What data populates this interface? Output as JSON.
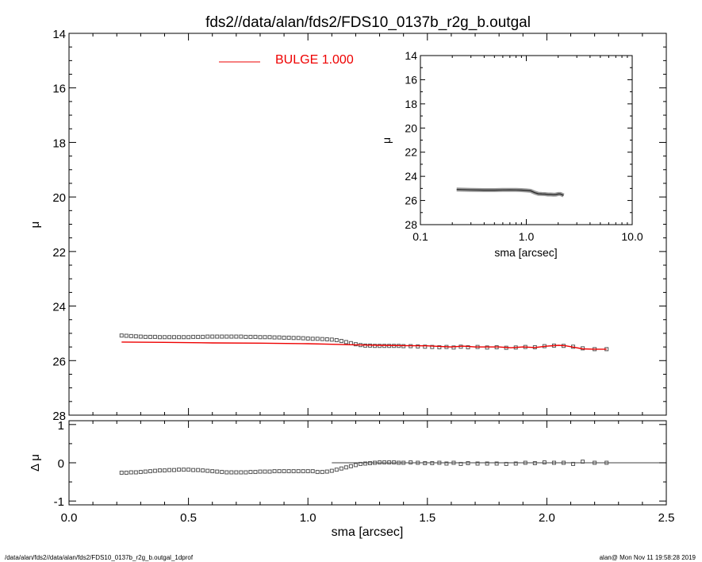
{
  "chart_data": [
    {
      "type": "scatter",
      "panel": "main",
      "title": "fds2//data/alan/fds2/FDS10_0137b_r2g_b.outgal",
      "ylabel": "μ",
      "xlim": [
        0.0,
        2.5
      ],
      "ylim": [
        28,
        14
      ],
      "y_inverted": true,
      "yticks": [
        "14",
        "16",
        "18",
        "20",
        "22",
        "24",
        "26",
        "28"
      ],
      "legend": {
        "label": "BULGE  1.000",
        "color": "#ee0000",
        "position": "top-center"
      },
      "series": [
        {
          "kind": "points",
          "marker": "open-square",
          "color": "#555555",
          "x": [
            0.22,
            0.24,
            0.26,
            0.28,
            0.3,
            0.32,
            0.34,
            0.36,
            0.38,
            0.4,
            0.42,
            0.44,
            0.46,
            0.48,
            0.5,
            0.52,
            0.54,
            0.56,
            0.58,
            0.6,
            0.62,
            0.64,
            0.66,
            0.68,
            0.7,
            0.72,
            0.74,
            0.76,
            0.78,
            0.8,
            0.82,
            0.84,
            0.86,
            0.88,
            0.9,
            0.92,
            0.94,
            0.96,
            0.98,
            1.0,
            1.02,
            1.04,
            1.06,
            1.08,
            1.1,
            1.12,
            1.14,
            1.16,
            1.18,
            1.2,
            1.22,
            1.24,
            1.26,
            1.28,
            1.3,
            1.32,
            1.34,
            1.36,
            1.38,
            1.4,
            1.43,
            1.46,
            1.49,
            1.52,
            1.55,
            1.58,
            1.61,
            1.64,
            1.67,
            1.71,
            1.75,
            1.79,
            1.83,
            1.87,
            1.91,
            1.95,
            1.99,
            2.03,
            2.07,
            2.11,
            2.15,
            2.2,
            2.25
          ],
          "y": [
            25.08,
            25.09,
            25.1,
            25.11,
            25.12,
            25.13,
            25.13,
            25.13,
            25.14,
            25.14,
            25.14,
            25.14,
            25.14,
            25.14,
            25.14,
            25.13,
            25.13,
            25.13,
            25.12,
            25.12,
            25.12,
            25.12,
            25.12,
            25.12,
            25.12,
            25.12,
            25.13,
            25.13,
            25.13,
            25.14,
            25.14,
            25.14,
            25.15,
            25.15,
            25.16,
            25.16,
            25.17,
            25.17,
            25.18,
            25.19,
            25.2,
            25.2,
            25.21,
            25.22,
            25.23,
            25.25,
            25.28,
            25.32,
            25.36,
            25.4,
            25.43,
            25.45,
            25.45,
            25.46,
            25.46,
            25.46,
            25.46,
            25.46,
            25.46,
            25.47,
            25.47,
            25.48,
            25.49,
            25.5,
            25.51,
            25.5,
            25.52,
            25.49,
            25.51,
            25.5,
            25.52,
            25.51,
            25.53,
            25.52,
            25.5,
            25.51,
            25.47,
            25.45,
            25.46,
            25.49,
            25.55,
            25.58,
            25.58
          ]
        },
        {
          "kind": "line",
          "name": "BULGE",
          "color": "#ee0000",
          "x": [
            0.22,
            0.4,
            0.6,
            0.8,
            1.0,
            1.1,
            1.2,
            1.25,
            1.3,
            1.4,
            1.5,
            1.55,
            1.6,
            1.65,
            1.7,
            1.8,
            1.85,
            1.9,
            1.95,
            2.0,
            2.05,
            2.08,
            2.12,
            2.15,
            2.2,
            2.25
          ],
          "y": [
            25.32,
            25.33,
            25.35,
            25.36,
            25.38,
            25.4,
            25.42,
            25.43,
            25.44,
            25.45,
            25.46,
            25.48,
            25.5,
            25.47,
            25.5,
            25.5,
            25.53,
            25.5,
            25.52,
            25.47,
            25.44,
            25.46,
            25.52,
            25.57,
            25.58,
            25.58
          ]
        }
      ]
    },
    {
      "type": "scatter",
      "panel": "inset",
      "xlabel": "sma [arcsec]",
      "ylabel": "μ",
      "xscale": "log",
      "xlim": [
        0.1,
        10.0
      ],
      "ylim": [
        28,
        14
      ],
      "y_inverted": true,
      "xticks": [
        "0.1",
        "1.0",
        "10.0"
      ],
      "yticks": [
        "14",
        "16",
        "18",
        "20",
        "22",
        "24",
        "26",
        "28"
      ],
      "series": [
        {
          "kind": "band",
          "color": "#555555",
          "x": [
            0.22,
            0.3,
            0.4,
            0.5,
            0.6,
            0.7,
            0.8,
            0.9,
            1.0,
            1.1,
            1.2,
            1.3,
            1.4,
            1.5,
            1.6,
            1.7,
            1.8,
            1.9,
            2.0,
            2.1,
            2.25
          ],
          "y": [
            25.09,
            25.12,
            25.14,
            25.14,
            25.13,
            25.12,
            25.13,
            25.14,
            25.17,
            25.2,
            25.35,
            25.44,
            25.46,
            25.47,
            25.5,
            25.5,
            25.52,
            25.51,
            25.46,
            25.46,
            25.58
          ]
        }
      ]
    },
    {
      "type": "scatter",
      "panel": "residual",
      "xlabel": "sma [arcsec]",
      "ylabel": "Δ μ",
      "xlim": [
        0.0,
        2.5
      ],
      "ylim": [
        -1,
        1
      ],
      "xticks": [
        "0.0",
        "0.5",
        "1.0",
        "1.5",
        "2.0",
        "2.5"
      ],
      "yticks": [
        "1",
        "0",
        "-1"
      ],
      "zero_line": {
        "x_from": 1.1,
        "x_to": 2.5,
        "y": 0
      },
      "series": [
        {
          "kind": "points",
          "marker": "open-square",
          "color": "#555555",
          "x": [
            0.22,
            0.24,
            0.26,
            0.28,
            0.3,
            0.32,
            0.34,
            0.36,
            0.38,
            0.4,
            0.42,
            0.44,
            0.46,
            0.48,
            0.5,
            0.52,
            0.54,
            0.56,
            0.58,
            0.6,
            0.62,
            0.64,
            0.66,
            0.68,
            0.7,
            0.72,
            0.74,
            0.76,
            0.78,
            0.8,
            0.82,
            0.84,
            0.86,
            0.88,
            0.9,
            0.92,
            0.94,
            0.96,
            0.98,
            1.0,
            1.02,
            1.04,
            1.06,
            1.08,
            1.1,
            1.12,
            1.14,
            1.16,
            1.18,
            1.2,
            1.22,
            1.24,
            1.26,
            1.28,
            1.3,
            1.32,
            1.34,
            1.36,
            1.38,
            1.4,
            1.43,
            1.46,
            1.49,
            1.52,
            1.55,
            1.58,
            1.61,
            1.64,
            1.67,
            1.71,
            1.75,
            1.79,
            1.83,
            1.87,
            1.91,
            1.95,
            1.99,
            2.03,
            2.07,
            2.11,
            2.15,
            2.2,
            2.25
          ],
          "y": [
            -0.26,
            -0.26,
            -0.25,
            -0.25,
            -0.24,
            -0.23,
            -0.22,
            -0.21,
            -0.2,
            -0.2,
            -0.19,
            -0.19,
            -0.18,
            -0.18,
            -0.18,
            -0.19,
            -0.19,
            -0.2,
            -0.21,
            -0.22,
            -0.23,
            -0.24,
            -0.25,
            -0.25,
            -0.25,
            -0.25,
            -0.25,
            -0.24,
            -0.24,
            -0.23,
            -0.23,
            -0.23,
            -0.22,
            -0.22,
            -0.22,
            -0.22,
            -0.22,
            -0.22,
            -0.22,
            -0.22,
            -0.22,
            -0.24,
            -0.24,
            -0.23,
            -0.21,
            -0.18,
            -0.15,
            -0.12,
            -0.09,
            -0.06,
            -0.03,
            -0.02,
            -0.01,
            0.0,
            0.01,
            0.01,
            0.01,
            0.01,
            0.0,
            0.0,
            0.01,
            0.0,
            -0.01,
            -0.01,
            0.0,
            -0.02,
            0.0,
            -0.03,
            -0.01,
            -0.02,
            -0.02,
            -0.02,
            -0.03,
            -0.02,
            0.0,
            -0.01,
            0.01,
            0.0,
            0.0,
            -0.03,
            0.03,
            0.0,
            0.0
          ]
        }
      ]
    }
  ],
  "footer": {
    "left": "/data/alan/fds2//data/alan/fds2/FDS10_0137b_r2g_b.outgal_1dprof",
    "right": "alan@  Mon Nov 11 19:58:28 2019"
  }
}
